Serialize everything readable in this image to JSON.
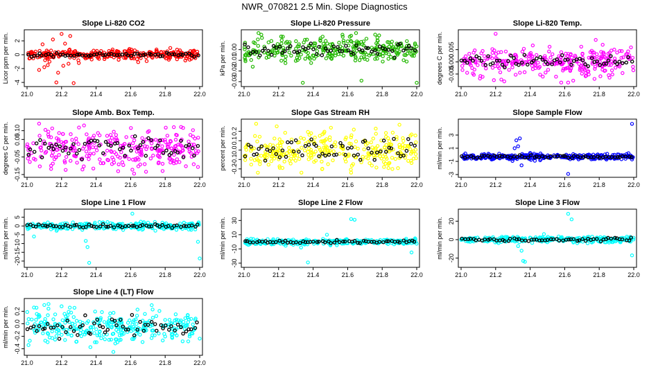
{
  "page_title": "NWR_070821  2.5 Min. Slope Diagnostics",
  "chart_data": [
    {
      "type": "scatter",
      "title": "Slope Li-820 CO2",
      "xlabel": "",
      "ylabel": "Licor ppm per min.",
      "xlim": [
        21.0,
        22.0
      ],
      "ylim": [
        -4.2,
        3.2
      ],
      "x_ticks": [
        "21.0",
        "21.2",
        "21.4",
        "21.6",
        "21.8",
        "22.0"
      ],
      "y_ticks": [
        "-4",
        "-2",
        "0",
        "2"
      ],
      "y_tick_values": [
        -4,
        -2,
        0,
        2
      ],
      "color": "#ff0000",
      "center": 0.0,
      "spread": 0.35,
      "black_spread": 0.15,
      "outliers": [
        [
          21.07,
          -2.2
        ],
        [
          21.1,
          -1.8
        ],
        [
          21.12,
          -1.5
        ],
        [
          21.15,
          2.2
        ],
        [
          21.17,
          -4.0
        ],
        [
          21.18,
          -2.6
        ],
        [
          21.2,
          3.0
        ],
        [
          21.21,
          -1.6
        ],
        [
          21.22,
          1.6
        ],
        [
          21.25,
          2.7
        ],
        [
          21.27,
          -4.1
        ],
        [
          21.3,
          -1.2
        ],
        [
          21.13,
          -1.0
        ],
        [
          21.09,
          1.5
        ],
        [
          21.24,
          -1.3
        ]
      ]
    },
    {
      "type": "scatter",
      "title": "Slope Li-820 Pressure",
      "xlabel": "",
      "ylabel": "kPa per min.",
      "xlim": [
        21.0,
        22.0
      ],
      "ylim": [
        -0.032,
        0.016
      ],
      "x_ticks": [
        "21.0",
        "21.2",
        "21.4",
        "21.6",
        "21.8",
        "22.0"
      ],
      "y_ticks": [
        "-0.03",
        "-0.02",
        "-0.01",
        "0.00"
      ],
      "y_tick_values": [
        -0.03,
        -0.02,
        -0.01,
        0.0
      ],
      "color": "#22b800",
      "center": 0.0,
      "spread": 0.0055,
      "black_spread": 0.0025,
      "outliers": [
        [
          21.34,
          -0.031
        ],
        [
          21.68,
          -0.029
        ],
        [
          22.0,
          -0.031
        ],
        [
          21.1,
          0.014
        ],
        [
          21.57,
          0.014
        ],
        [
          21.62,
          0.013
        ],
        [
          21.05,
          -0.016
        ]
      ]
    },
    {
      "type": "scatter",
      "title": "Slope Li-820 Temp.",
      "xlabel": "",
      "ylabel": "degrees C per min.",
      "xlim": [
        21.0,
        22.0
      ],
      "ylim": [
        -0.009,
        0.012
      ],
      "x_ticks": [
        "21.0",
        "21.2",
        "21.4",
        "21.6",
        "21.8",
        "22.0"
      ],
      "y_ticks": [
        "-0.005",
        "0.000",
        "0.005"
      ],
      "y_tick_values": [
        -0.005,
        0.0,
        0.005
      ],
      "color": "#ff00ff",
      "center": 0.0,
      "spread": 0.0028,
      "black_spread": 0.0015,
      "outliers": [
        [
          21.2,
          0.0115
        ],
        [
          21.19,
          -0.0075
        ],
        [
          21.25,
          -0.008
        ],
        [
          21.58,
          -0.0085
        ],
        [
          21.62,
          -0.0085
        ],
        [
          21.78,
          0.009
        ],
        [
          21.82,
          0.007
        ]
      ]
    },
    {
      "type": "scatter",
      "title": "Slope Amb. Box Temp.",
      "xlabel": "",
      "ylabel": "degrees C per min.",
      "xlim": [
        21.0,
        22.0
      ],
      "ylim": [
        -0.15,
        0.15
      ],
      "x_ticks": [
        "21.0",
        "21.2",
        "21.4",
        "21.6",
        "21.8",
        "22.0"
      ],
      "y_ticks": [
        "-0.15",
        "-0.05",
        "0.05",
        "0.10"
      ],
      "y_tick_values": [
        -0.15,
        -0.05,
        0.05,
        0.1
      ],
      "color": "#ff00ff",
      "center": 0.0,
      "spread": 0.055,
      "black_spread": 0.03,
      "outliers": [
        [
          21.07,
          0.14
        ],
        [
          21.62,
          -0.145
        ],
        [
          21.33,
          0.13
        ],
        [
          21.85,
          0.12
        ]
      ]
    },
    {
      "type": "scatter",
      "title": "Slope Gas Stream RH",
      "xlabel": "",
      "ylabel": "percent per min.",
      "xlim": [
        21.0,
        22.0
      ],
      "ylim": [
        -0.26,
        0.3
      ],
      "x_ticks": [
        "21.0",
        "21.2",
        "21.4",
        "21.6",
        "21.8",
        "22.0"
      ],
      "y_ticks": [
        "-0.2",
        "-0.1",
        "0.0",
        "0.1",
        "0.2"
      ],
      "y_tick_values": [
        -0.2,
        -0.1,
        0.0,
        0.1,
        0.2
      ],
      "color": "#ffff00",
      "center": 0.0,
      "spread": 0.1,
      "black_spread": 0.06,
      "outliers": [
        [
          21.07,
          0.28
        ],
        [
          21.08,
          -0.24
        ],
        [
          21.62,
          -0.24
        ],
        [
          21.9,
          0.27
        ]
      ]
    },
    {
      "type": "scatter",
      "title": "Slope Sample Flow",
      "xlabel": "",
      "ylabel": "ml/min per min.",
      "xlim": [
        21.0,
        22.0
      ],
      "ylim": [
        -3.0,
        5.0
      ],
      "x_ticks": [
        "21.0",
        "21.2",
        "21.4",
        "21.6",
        "21.8",
        "22.0"
      ],
      "y_ticks": [
        "-3",
        "-1",
        "1",
        "3"
      ],
      "y_tick_values": [
        -3,
        -1,
        1,
        3
      ],
      "color": "#0000ff",
      "center": -0.3,
      "spread": 0.22,
      "black_spread": 0.1,
      "outliers": [
        [
          21.32,
          2.2
        ],
        [
          21.33,
          1.3
        ],
        [
          21.34,
          2.5
        ],
        [
          21.31,
          1.0
        ],
        [
          21.62,
          -2.9
        ],
        [
          21.99,
          4.7
        ],
        [
          21.35,
          -1.6
        ]
      ]
    },
    {
      "type": "scatter",
      "title": "Slope Line 1 Flow",
      "xlabel": "",
      "ylabel": "ml/min per min.",
      "xlim": [
        21.0,
        22.0
      ],
      "ylim": [
        -22.0,
        8.0
      ],
      "x_ticks": [
        "21.0",
        "21.2",
        "21.4",
        "21.6",
        "21.8",
        "22.0"
      ],
      "y_ticks": [
        "-20",
        "-15",
        "-10",
        "-5",
        "0",
        "5"
      ],
      "y_tick_values": [
        -20,
        -15,
        -10,
        -5,
        0,
        5
      ],
      "color": "#00ffff",
      "center": 0.0,
      "spread": 1.0,
      "black_spread": 0.5,
      "outliers": [
        [
          21.34,
          -8.5
        ],
        [
          21.35,
          -12.0
        ],
        [
          21.36,
          -21.0
        ],
        [
          21.61,
          7.0
        ],
        [
          21.63,
          1.5
        ],
        [
          21.99,
          -9.0
        ],
        [
          22.0,
          -18.5
        ],
        [
          21.04,
          -6.0
        ]
      ]
    },
    {
      "type": "scatter",
      "title": "Slope Line 2 Flow",
      "xlabel": "",
      "ylabel": "ml/min per min.",
      "xlim": [
        21.0,
        22.0
      ],
      "ylim": [
        -32.0,
        42.0
      ],
      "x_ticks": [
        "21.0",
        "21.2",
        "21.4",
        "21.6",
        "21.8",
        "22.0"
      ],
      "y_ticks": [
        "-30",
        "-10",
        "10",
        "30"
      ],
      "y_tick_values": [
        -30,
        -10,
        10,
        30
      ],
      "color": "#00ffff",
      "center": 0.0,
      "spread": 1.8,
      "black_spread": 1.0,
      "outliers": [
        [
          21.37,
          -29.0
        ],
        [
          21.62,
          32.0
        ],
        [
          21.64,
          31.0
        ],
        [
          21.48,
          10.0
        ],
        [
          21.5,
          -5.0
        ],
        [
          21.97,
          -15.0
        ],
        [
          21.33,
          -8.0
        ]
      ]
    },
    {
      "type": "scatter",
      "title": "Slope Line 3 Flow",
      "xlabel": "",
      "ylabel": "ml/min per min.",
      "xlim": [
        21.0,
        22.0
      ],
      "ylim": [
        -27.0,
        30.0
      ],
      "x_ticks": [
        "21.0",
        "21.2",
        "21.4",
        "21.6",
        "21.8",
        "22.0"
      ],
      "y_ticks": [
        "-20",
        "0",
        "20"
      ],
      "y_tick_values": [
        -20,
        0,
        20
      ],
      "color": "#00ffff",
      "center": 0.0,
      "spread": 1.5,
      "black_spread": 1.0,
      "outliers": [
        [
          21.36,
          -23.0
        ],
        [
          21.37,
          -24.0
        ],
        [
          21.35,
          -12.0
        ],
        [
          21.62,
          28.0
        ],
        [
          21.64,
          22.0
        ],
        [
          21.99,
          -17.0
        ],
        [
          21.33,
          -7.0
        ],
        [
          21.48,
          6.0
        ]
      ]
    },
    {
      "type": "scatter",
      "title": "Slope Line 4 (LT) Flow",
      "xlabel": "",
      "ylabel": "ml/min per min.",
      "xlim": [
        21.0,
        22.0
      ],
      "ylim": [
        -0.46,
        0.36
      ],
      "x_ticks": [
        "21.0",
        "21.2",
        "21.4",
        "21.6",
        "21.8",
        "22.0"
      ],
      "y_ticks": [
        "-0.4",
        "-0.2",
        "0.0",
        "0.2"
      ],
      "y_tick_values": [
        -0.4,
        -0.2,
        0.0,
        0.2
      ],
      "color": "#00ffff",
      "center": -0.05,
      "spread": 0.13,
      "black_spread": 0.08,
      "outliers": [
        [
          21.5,
          -0.45
        ],
        [
          21.1,
          0.3
        ],
        [
          21.2,
          0.28
        ],
        [
          21.04,
          0.26
        ]
      ]
    }
  ]
}
